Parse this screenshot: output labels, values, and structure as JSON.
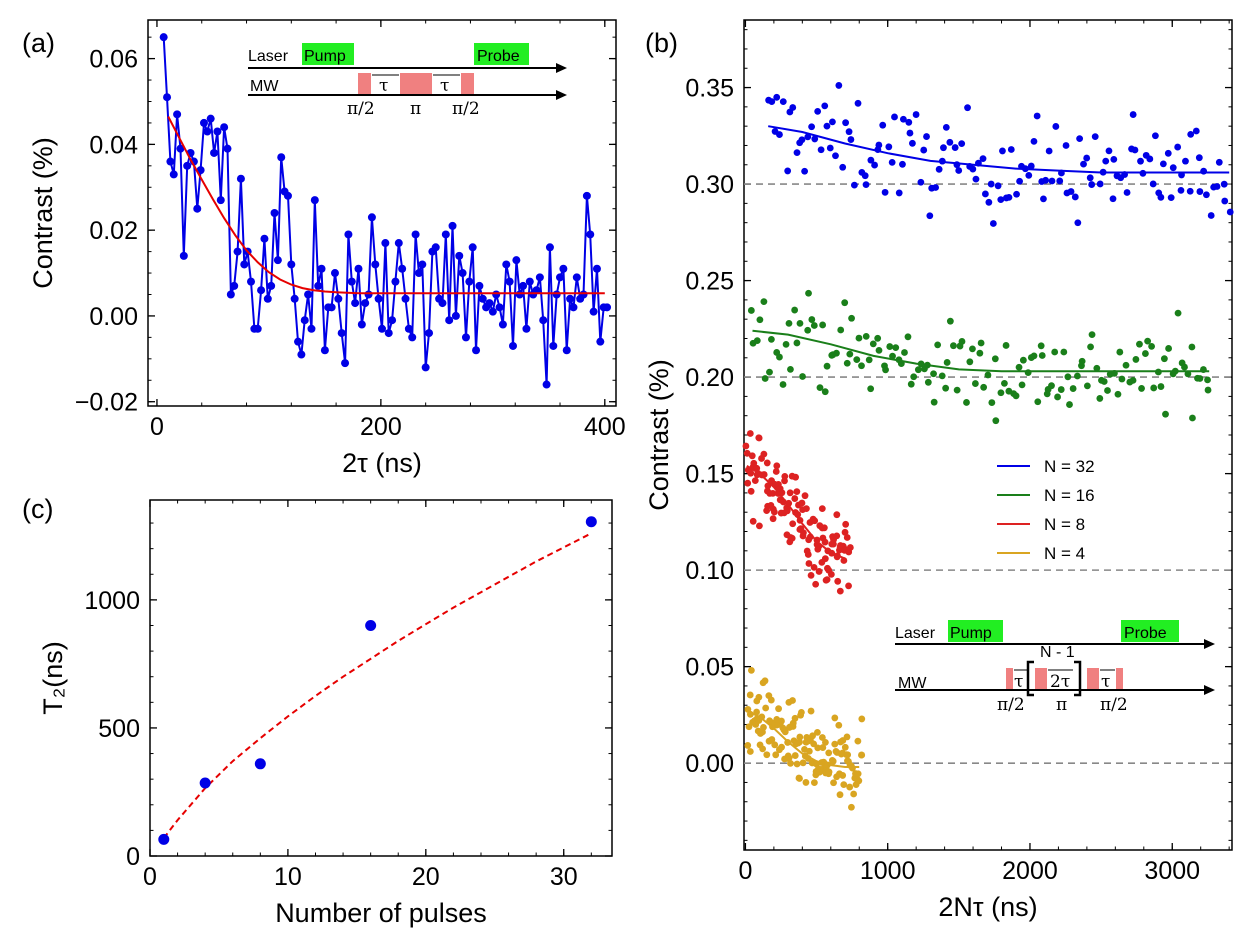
{
  "colors": {
    "blue": "#0000e6",
    "red": "#e60000",
    "green": "#1a7f1a",
    "scatter_red": "#dd2222",
    "gold": "#d9a521",
    "pulse": "#f08080",
    "laser_box": "#22ee22",
    "dashed": "#888888"
  },
  "panels": {
    "a": {
      "letter": "(a)"
    },
    "b": {
      "letter": "(b)"
    },
    "c": {
      "letter": "(c)"
    }
  },
  "inset_a": {
    "laser": "Laser",
    "pump": "Pump",
    "probe": "Probe",
    "mw": "MW",
    "tau": "τ",
    "pi_half": "π/2",
    "pi": "π"
  },
  "inset_b": {
    "laser": "Laser",
    "pump": "Pump",
    "probe": "Probe",
    "mw": "MW",
    "tau": "τ",
    "two_tau": "2τ",
    "repeat": "N - 1",
    "pi_half": "π/2",
    "pi": "π"
  },
  "chart_data": [
    {
      "panel": "a",
      "type": "line",
      "xlabel": "2τ (ns)",
      "ylabel": "Contrast (%)",
      "xlim": [
        -8,
        410
      ],
      "ylim": [
        -0.021,
        0.069
      ],
      "xticks": [
        0,
        200,
        400
      ],
      "yticks": [
        -0.02,
        0.0,
        0.02,
        0.04,
        0.06
      ],
      "ytick_labels": [
        "−0.02",
        "0.00",
        "0.02",
        "0.04",
        "0.06"
      ],
      "series": [
        {
          "style": "line-markers",
          "color": "blue",
          "x": [
            6,
            9,
            12,
            15,
            18,
            21,
            24,
            27,
            30,
            33,
            36,
            39,
            42,
            45,
            48,
            51,
            54,
            57,
            60,
            63,
            66,
            69,
            72,
            75,
            78,
            81,
            84,
            87,
            90,
            93,
            96,
            99,
            102,
            105,
            108,
            111,
            114,
            117,
            120,
            123,
            126,
            129,
            132,
            135,
            138,
            141,
            144,
            147,
            150,
            153,
            156,
            159,
            162,
            165,
            168,
            171,
            174,
            177,
            180,
            183,
            186,
            189,
            192,
            195,
            198,
            201,
            204,
            207,
            210,
            213,
            216,
            219,
            222,
            225,
            228,
            231,
            234,
            237,
            240,
            243,
            246,
            249,
            252,
            255,
            258,
            261,
            264,
            267,
            270,
            273,
            276,
            279,
            282,
            285,
            288,
            291,
            294,
            297,
            300,
            303,
            306,
            309,
            312,
            315,
            318,
            321,
            324,
            327,
            330,
            333,
            336,
            339,
            342,
            345,
            348,
            351,
            354,
            357,
            360,
            363,
            366,
            369,
            372,
            375,
            378,
            381,
            384,
            387,
            390,
            393,
            396,
            399,
            402
          ],
          "y": [
            0.065,
            0.051,
            0.036,
            0.033,
            0.047,
            0.039,
            0.014,
            0.035,
            0.038,
            0.036,
            0.025,
            0.034,
            0.045,
            0.043,
            0.046,
            0.038,
            0.043,
            0.027,
            0.044,
            0.039,
            0.005,
            0.007,
            0.015,
            0.032,
            0.012,
            0.015,
            0.008,
            -0.003,
            -0.003,
            0.006,
            0.018,
            0.004,
            0.007,
            0.024,
            0.013,
            0.037,
            0.029,
            0.028,
            0.012,
            0.004,
            -0.006,
            -0.009,
            -0.001,
            0.005,
            -0.003,
            0.027,
            0.007,
            0.011,
            -0.008,
            0.002,
            0.002,
            0.01,
            0.004,
            -0.004,
            -0.011,
            0.019,
            0.008,
            0.003,
            0.011,
            -0.002,
            0.003,
            0.005,
            0.023,
            0.012,
            0.004,
            -0.003,
            0.017,
            -0.004,
            -0.001,
            0.008,
            0.017,
            0.011,
            0.004,
            -0.003,
            -0.005,
            0.019,
            0.01,
            0.012,
            -0.012,
            -0.004,
            0.015,
            0.016,
            0.004,
            0.003,
            0.019,
            -0.001,
            0.021,
            0.0,
            0.014,
            0.01,
            -0.005,
            0.008,
            0.016,
            -0.008,
            0.007,
            0.004,
            0.002,
            0.003,
            0.001,
            0.005,
            0.002,
            -0.002,
            0.012,
            0.008,
            -0.007,
            0.013,
            0.005,
            0.007,
            -0.003,
            0.008,
            0.005,
            0.006,
            0.009,
            -0.001,
            -0.016,
            0.016,
            -0.007,
            0.005,
            0.009,
            0.011,
            -0.008,
            0.004,
            0.002,
            0.009,
            0.004,
            0.005,
            0.028,
            0.019,
            0.001,
            0.011,
            -0.006,
            0.002,
            0.002
          ],
          "marker_size": 4
        },
        {
          "style": "line",
          "color": "red",
          "x": [
            10,
            20,
            30,
            40,
            50,
            60,
            70,
            80,
            90,
            100,
            110,
            120,
            130,
            140,
            150,
            160,
            170,
            180,
            190,
            200,
            220,
            240,
            260,
            280,
            300,
            320,
            340,
            360,
            380,
            400
          ],
          "y": [
            0.0465,
            0.0415,
            0.0365,
            0.0318,
            0.0272,
            0.0228,
            0.0188,
            0.0153,
            0.0125,
            0.0102,
            0.0085,
            0.0073,
            0.0065,
            0.006,
            0.0057,
            0.0055,
            0.0054,
            0.0053,
            0.0053,
            0.0053,
            0.0053,
            0.0053,
            0.0053,
            0.0053,
            0.0053,
            0.0053,
            0.0053,
            0.0053,
            0.0053,
            0.0053
          ]
        }
      ]
    },
    {
      "panel": "b",
      "type": "scatter",
      "xlabel": "2Nτ (ns)",
      "ylabel": "Contrast (%)",
      "xlim": [
        -10,
        3420
      ],
      "ylim": [
        -0.045,
        0.385
      ],
      "xticks": [
        0,
        1000,
        2000,
        3000
      ],
      "yticks": [
        0.0,
        0.05,
        0.1,
        0.15,
        0.2,
        0.25,
        0.3,
        0.35
      ],
      "ytick_labels": [
        "0.00",
        "0.05",
        "0.10",
        "0.15",
        "0.20",
        "0.25",
        "0.30",
        "0.35"
      ],
      "hlines": [
        0.0,
        0.1,
        0.2,
        0.3
      ],
      "legend": {
        "position": "center-right",
        "entries": [
          {
            "label": "N = 32",
            "color": "blue"
          },
          {
            "label": "N = 16",
            "color": "green"
          },
          {
            "label": "N = 8",
            "color": "scatter_red"
          },
          {
            "label": "N = 4",
            "color": "gold"
          }
        ]
      },
      "series": [
        {
          "name": "N = 32",
          "color": "blue",
          "points_xrange": [
            160,
            3400
          ],
          "points_count": 150,
          "noise": 0.018,
          "fit_x": [
            160,
            400,
            700,
            1000,
            1300,
            1600,
            1900,
            2200,
            2500,
            2800,
            3100,
            3400
          ],
          "fit_y": [
            0.33,
            0.327,
            0.321,
            0.316,
            0.312,
            0.31,
            0.308,
            0.307,
            0.306,
            0.306,
            0.306,
            0.306
          ]
        },
        {
          "name": "N = 16",
          "color": "green",
          "points_xrange": [
            40,
            3260
          ],
          "points_count": 150,
          "noise": 0.016,
          "fit_x": [
            50,
            300,
            600,
            900,
            1200,
            1500,
            1800,
            2100,
            2400,
            2700,
            3000,
            3260
          ],
          "fit_y": [
            0.224,
            0.222,
            0.217,
            0.211,
            0.207,
            0.204,
            0.203,
            0.203,
            0.203,
            0.203,
            0.203,
            0.203
          ]
        },
        {
          "name": "N = 8",
          "color": "scatter_red",
          "points_xrange": [
            10,
            740
          ],
          "points_count": 130,
          "noise": 0.015,
          "fit_x": [
            10,
            100,
            200,
            300,
            400,
            500,
            600,
            700
          ],
          "fit_y": [
            0.154,
            0.15,
            0.143,
            0.134,
            0.124,
            0.115,
            0.109,
            0.106
          ]
        },
        {
          "name": "N = 4",
          "color": "gold",
          "points_xrange": [
            10,
            820
          ],
          "points_count": 150,
          "noise": 0.014,
          "fit_x": [
            10,
            100,
            200,
            300,
            400,
            500,
            600,
            700,
            800
          ],
          "fit_y": [
            0.027,
            0.024,
            0.018,
            0.011,
            0.005,
            0.001,
            -0.001,
            -0.002,
            -0.002
          ]
        }
      ]
    },
    {
      "panel": "c",
      "type": "scatter",
      "xlabel": "Number of pulses",
      "ylabel": "T₂(ns)",
      "xlim": [
        0,
        33.5
      ],
      "ylim": [
        0,
        1390
      ],
      "xticks": [
        0,
        10,
        20,
        30
      ],
      "yticks": [
        0,
        500,
        1000
      ],
      "points": {
        "x": [
          1,
          4,
          8,
          16,
          32
        ],
        "y": [
          65,
          285,
          360,
          900,
          1305
        ]
      },
      "fit": {
        "style": "dashed",
        "color": "red",
        "x": [
          1,
          2,
          4,
          6,
          8,
          10,
          12,
          14,
          16,
          18,
          20,
          22,
          24,
          26,
          28,
          30,
          32
        ],
        "y": [
          70,
          140,
          265,
          370,
          460,
          545,
          625,
          700,
          770,
          840,
          905,
          970,
          1030,
          1090,
          1150,
          1205,
          1260
        ]
      }
    }
  ]
}
